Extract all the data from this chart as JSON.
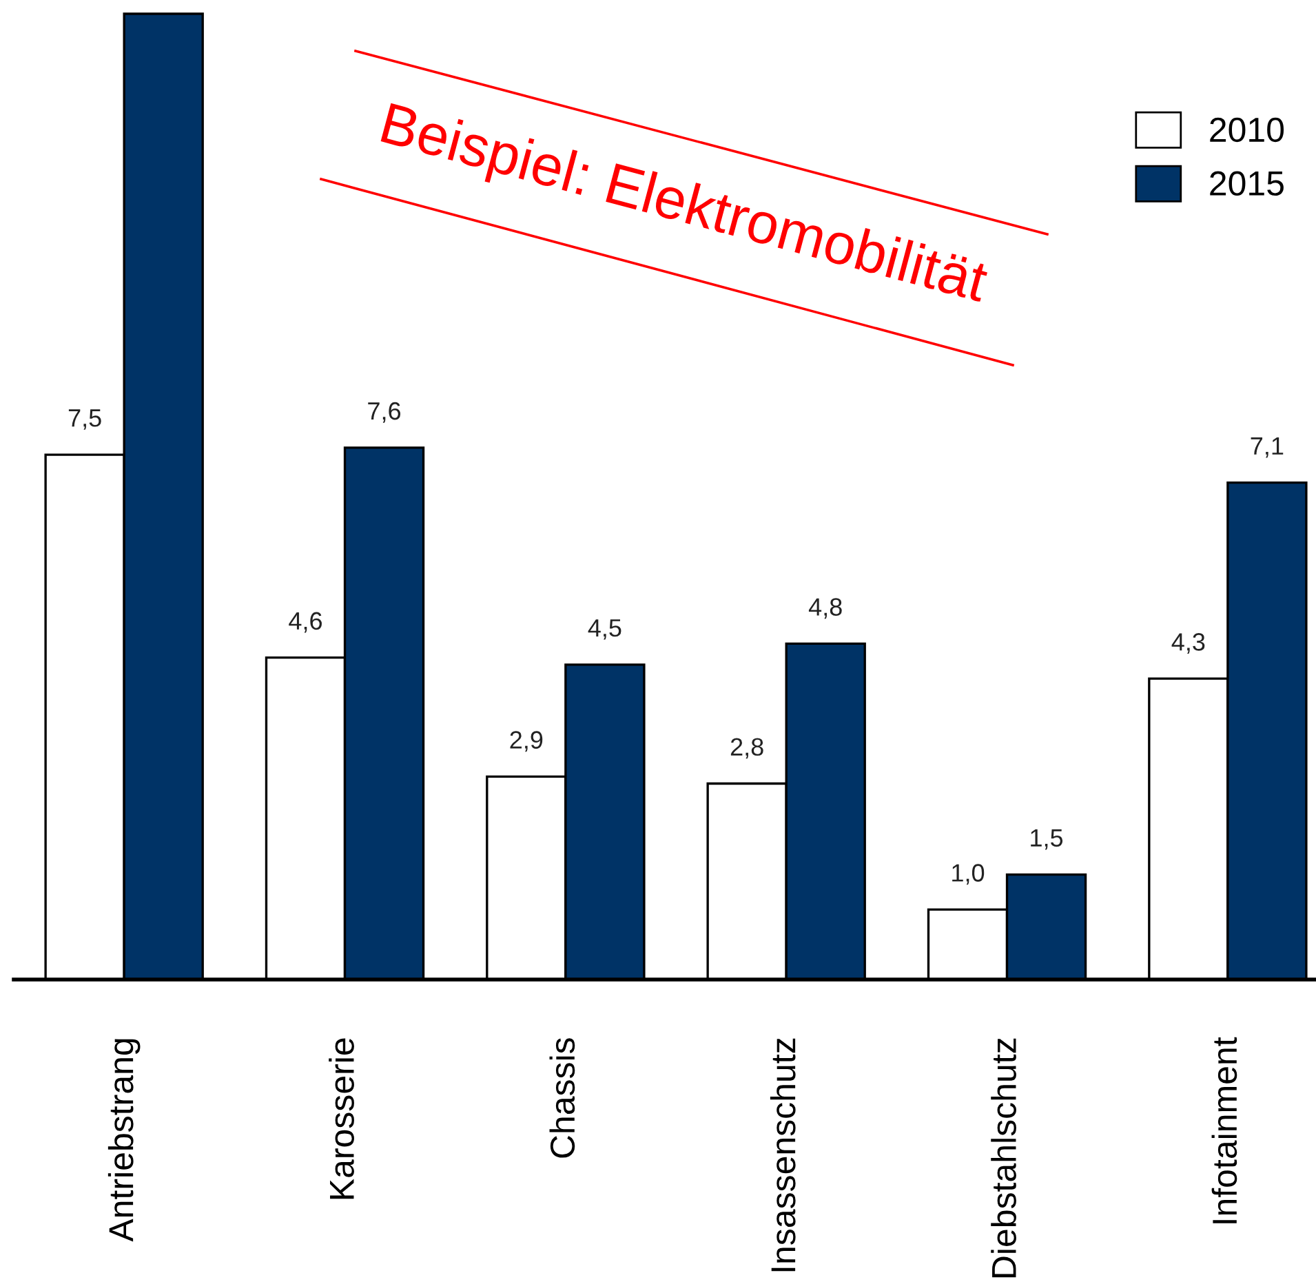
{
  "chart_data": {
    "type": "bar",
    "categories": [
      "Antriebstrang",
      "Karosserie",
      "Chassis",
      "Insassenschutz",
      "Diebstahlschutz",
      "Infotainment"
    ],
    "series": [
      {
        "name": "2010",
        "color": "#ffffff",
        "values": [
          7.5,
          4.6,
          2.9,
          2.8,
          1.0,
          4.3
        ],
        "value_labels": [
          "7,5",
          "4,6",
          "2,9",
          "2,8",
          "1,0",
          "4,3"
        ]
      },
      {
        "name": "2015",
        "color": "#003366",
        "values": [
          13.8,
          7.6,
          4.5,
          4.8,
          1.5,
          7.1
        ],
        "value_labels": [
          null,
          "7,6",
          "4,5",
          "4,8",
          "1,5",
          "7,1"
        ]
      }
    ],
    "ylim": [
      0,
      13.8
    ],
    "tick_labels": "x",
    "legend": "top right",
    "annotations": [
      "Beispiel: Elektromobilität"
    ]
  }
}
